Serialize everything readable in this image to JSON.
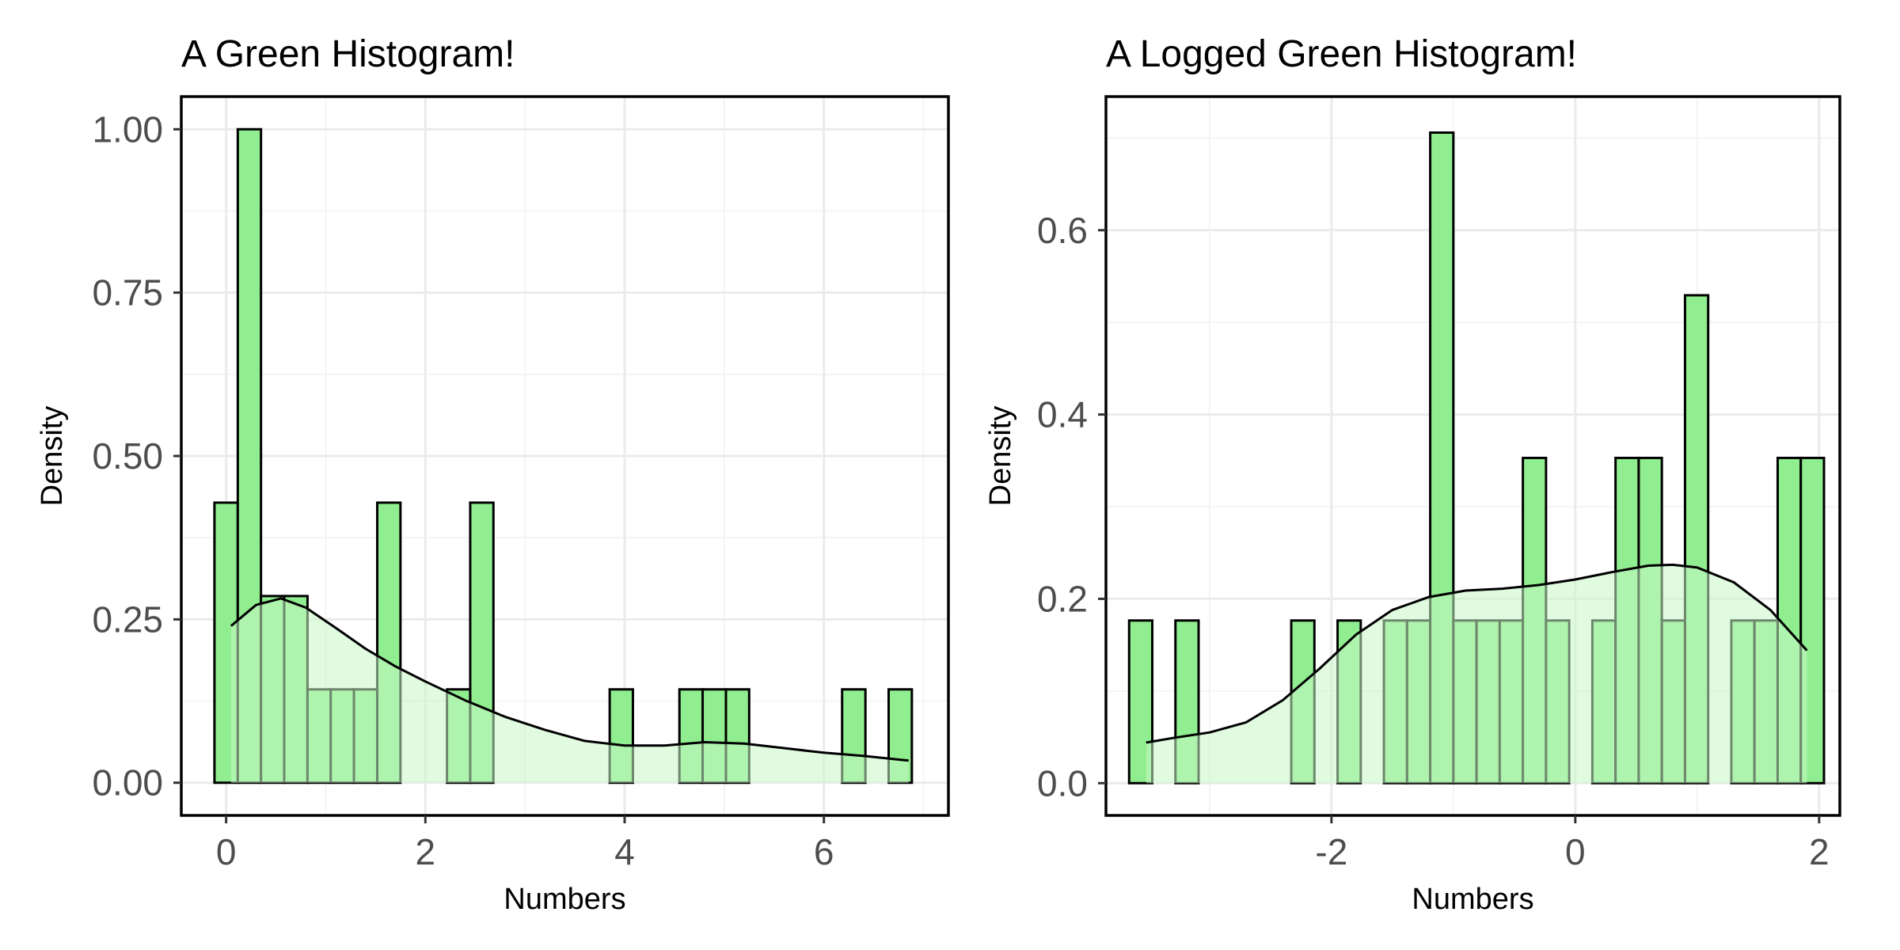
{
  "colors": {
    "bar_fill": "#90ee90",
    "bar_stroke": "#000000",
    "density_fill": "#c6f7c6",
    "density_line": "#000000",
    "grid_major": "#ebebeb",
    "grid_minor": "#f4f4f4",
    "tick_text": "#4d4d4d",
    "panel_border": "#000000"
  },
  "chart_data": [
    {
      "type": "bar",
      "title": "A Green Histogram!",
      "xlabel": "Numbers",
      "ylabel": "Density",
      "xlim": [
        -0.45,
        7.25
      ],
      "ylim": [
        -0.05,
        1.05
      ],
      "x_ticks": [
        0,
        2,
        4,
        6
      ],
      "x_tick_labels": [
        "0",
        "2",
        "4",
        "6"
      ],
      "y_ticks": [
        0,
        0.25,
        0.5,
        0.75,
        1.0
      ],
      "y_tick_labels": [
        "0.00",
        "0.25",
        "0.50",
        "0.75",
        "1.00"
      ],
      "grid": true,
      "bin_width": 0.2333,
      "bins": [
        {
          "x0": -0.117,
          "x1": 0.117,
          "density": 0.4286
        },
        {
          "x0": 0.117,
          "x1": 0.35,
          "density": 1.0
        },
        {
          "x0": 0.35,
          "x1": 0.583,
          "density": 0.2857
        },
        {
          "x0": 0.583,
          "x1": 0.817,
          "density": 0.2857
        },
        {
          "x0": 0.817,
          "x1": 1.05,
          "density": 0.1429
        },
        {
          "x0": 1.05,
          "x1": 1.283,
          "density": 0.1429
        },
        {
          "x0": 1.283,
          "x1": 1.517,
          "density": 0.1429
        },
        {
          "x0": 1.517,
          "x1": 1.75,
          "density": 0.4286
        },
        {
          "x0": 2.217,
          "x1": 2.45,
          "density": 0.1429
        },
        {
          "x0": 2.45,
          "x1": 2.683,
          "density": 0.4286
        },
        {
          "x0": 3.85,
          "x1": 4.083,
          "density": 0.1429
        },
        {
          "x0": 4.55,
          "x1": 4.783,
          "density": 0.1429
        },
        {
          "x0": 4.783,
          "x1": 5.017,
          "density": 0.1429
        },
        {
          "x0": 5.017,
          "x1": 5.25,
          "density": 0.1429
        },
        {
          "x0": 6.183,
          "x1": 6.417,
          "density": 0.1429
        },
        {
          "x0": 6.65,
          "x1": 6.883,
          "density": 0.1429
        }
      ],
      "density_curve": {
        "x": [
          0.05,
          0.3,
          0.55,
          0.8,
          1.1,
          1.4,
          1.7,
          2.0,
          2.4,
          2.8,
          3.2,
          3.6,
          4.0,
          4.4,
          4.8,
          5.2,
          5.6,
          6.0,
          6.4,
          6.85
        ],
        "y": [
          0.24,
          0.272,
          0.282,
          0.268,
          0.237,
          0.205,
          0.178,
          0.155,
          0.126,
          0.101,
          0.081,
          0.064,
          0.057,
          0.057,
          0.062,
          0.06,
          0.053,
          0.046,
          0.041,
          0.034
        ]
      }
    },
    {
      "type": "bar",
      "title": "A Logged Green Histogram!",
      "xlabel": "Numbers",
      "ylabel": "Density",
      "xlim": [
        -3.85,
        2.17
      ],
      "ylim": [
        -0.035,
        0.745
      ],
      "x_ticks": [
        -2,
        0,
        2
      ],
      "x_tick_labels": [
        "-2",
        "0",
        "2"
      ],
      "y_ticks": [
        0,
        0.2,
        0.4,
        0.6
      ],
      "y_tick_labels": [
        "0.0",
        "0.2",
        "0.4",
        "0.6"
      ],
      "grid": true,
      "bin_width": 0.1896,
      "bins": [
        {
          "x0": -3.66,
          "x1": -3.47,
          "density": 0.1765
        },
        {
          "x0": -3.28,
          "x1": -3.09,
          "density": 0.1765
        },
        {
          "x0": -2.33,
          "x1": -2.14,
          "density": 0.1765
        },
        {
          "x0": -1.95,
          "x1": -1.76,
          "density": 0.1765
        },
        {
          "x0": -1.57,
          "x1": -1.38,
          "density": 0.1765
        },
        {
          "x0": -1.38,
          "x1": -1.19,
          "density": 0.1765
        },
        {
          "x0": -1.19,
          "x1": -1.0,
          "density": 0.7059
        },
        {
          "x0": -1.0,
          "x1": -0.81,
          "density": 0.1765
        },
        {
          "x0": -0.81,
          "x1": -0.62,
          "density": 0.1765
        },
        {
          "x0": -0.62,
          "x1": -0.43,
          "density": 0.1765
        },
        {
          "x0": -0.43,
          "x1": -0.24,
          "density": 0.3529
        },
        {
          "x0": -0.24,
          "x1": -0.05,
          "density": 0.1765
        },
        {
          "x0": 0.14,
          "x1": 0.33,
          "density": 0.1765
        },
        {
          "x0": 0.33,
          "x1": 0.52,
          "density": 0.3529
        },
        {
          "x0": 0.52,
          "x1": 0.71,
          "density": 0.3529
        },
        {
          "x0": 0.71,
          "x1": 0.9,
          "density": 0.1765
        },
        {
          "x0": 0.9,
          "x1": 1.09,
          "density": 0.5294
        },
        {
          "x0": 1.28,
          "x1": 1.47,
          "density": 0.1765
        },
        {
          "x0": 1.47,
          "x1": 1.66,
          "density": 0.1765
        },
        {
          "x0": 1.66,
          "x1": 1.85,
          "density": 0.3529
        },
        {
          "x0": 1.85,
          "x1": 2.04,
          "density": 0.3529
        }
      ],
      "density_curve": {
        "x": [
          -3.52,
          -3.3,
          -3.0,
          -2.7,
          -2.4,
          -2.1,
          -1.8,
          -1.5,
          -1.2,
          -0.9,
          -0.6,
          -0.3,
          0.0,
          0.3,
          0.6,
          0.8,
          1.0,
          1.3,
          1.6,
          1.9
        ],
        "y": [
          0.044,
          0.049,
          0.055,
          0.066,
          0.09,
          0.124,
          0.161,
          0.188,
          0.202,
          0.209,
          0.211,
          0.215,
          0.221,
          0.229,
          0.236,
          0.237,
          0.234,
          0.218,
          0.188,
          0.144
        ]
      }
    }
  ]
}
